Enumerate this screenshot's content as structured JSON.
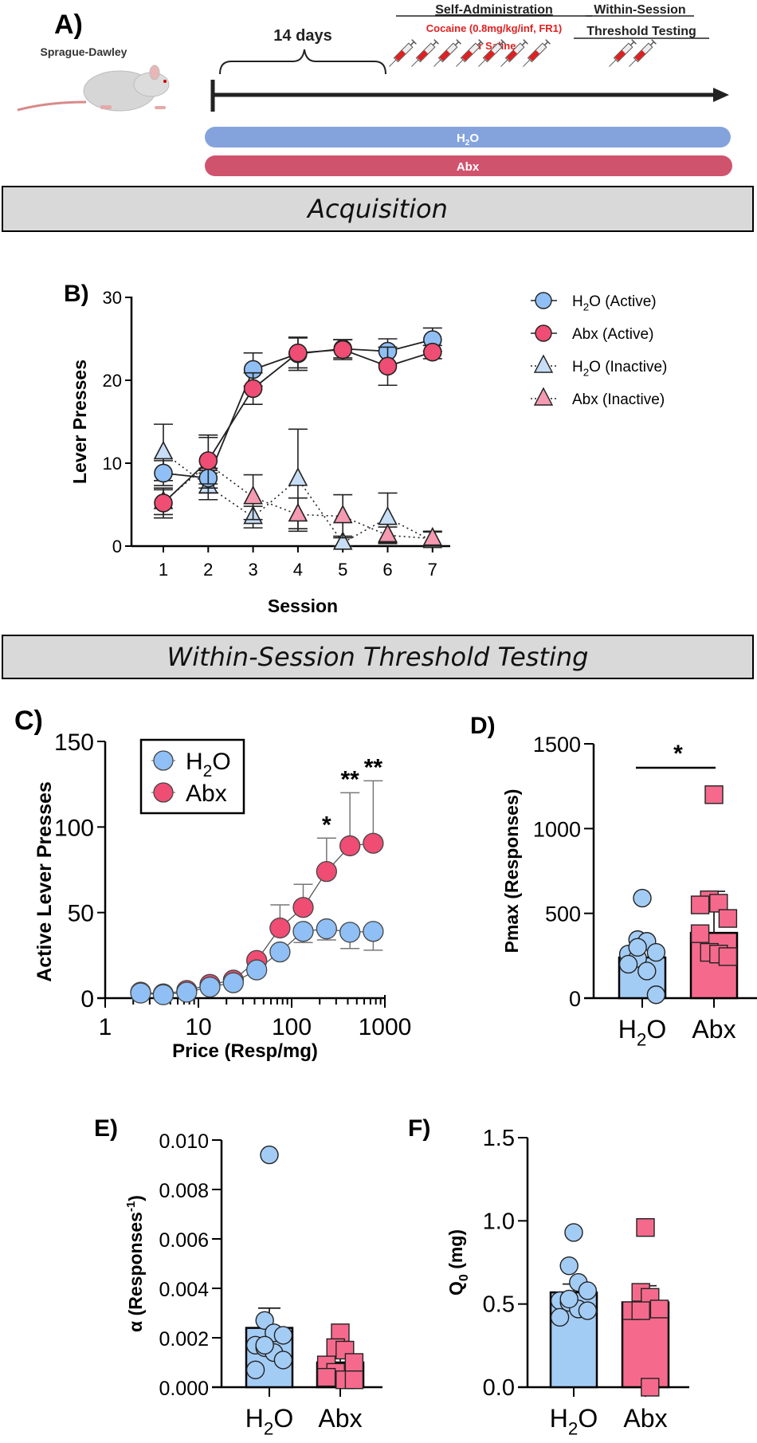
{
  "panel_a": {
    "label": "A)",
    "strain": "Sprague-Dawley",
    "duration": "14 days",
    "self_admin_title": "Self-Administration",
    "self_admin_drug_line1": "Cocaine (0.8mg/kg/inf, FR1)",
    "self_admin_drug_line2": "or Saline",
    "threshold_title_line1": "Within-Session",
    "threshold_title_line2": "Threshold Testing",
    "syringe_count_self_admin": 7,
    "syringe_count_threshold": 2,
    "bars": [
      {
        "label": "H",
        "sub": "2",
        "suffix": "O",
        "color": "#84a3dd"
      },
      {
        "label": "Abx",
        "sub": "",
        "suffix": "",
        "color": "#d0536e"
      }
    ],
    "drug_color": "#e02020"
  },
  "banners": {
    "acquisition": "Acquisition",
    "threshold": "Within-Session Threshold Testing"
  },
  "colors": {
    "h2o": "#8fbff5",
    "abx": "#ef4d73",
    "h2o_inactive": "#c8def7",
    "abx_inactive": "#f59ab1",
    "h2o_bar": "#a3ccf5",
    "abx_bar": "#f56a8c"
  },
  "chart_data": [
    {
      "id": "B",
      "label": "B)",
      "type": "line",
      "xlabel": "Session",
      "ylabel": "Lever Presses",
      "x": [
        1,
        2,
        3,
        4,
        5,
        6,
        7
      ],
      "ylim": [
        0,
        30
      ],
      "yticks": [
        0,
        10,
        20,
        30
      ],
      "series": [
        {
          "name": "H2O (Active)",
          "legend": {
            "main": "H",
            "sub": "2",
            "rest": "O (Active)"
          },
          "marker": "circle",
          "style": "solid",
          "color": "#8fbff5",
          "values": [
            8.8,
            8.2,
            21.3,
            23.2,
            23.8,
            23.5,
            24.9
          ],
          "err": [
            1.5,
            1.2,
            2.0,
            2.0,
            1.1,
            1.5,
            1.4
          ]
        },
        {
          "name": "Abx (Active)",
          "legend": {
            "main": "Abx (Active)",
            "sub": "",
            "rest": ""
          },
          "marker": "circle",
          "style": "solid",
          "color": "#ef4d73",
          "values": [
            5.2,
            10.3,
            19.0,
            23.3,
            23.7,
            21.7,
            23.4
          ],
          "err": [
            1.8,
            2.8,
            1.9,
            1.8,
            1.2,
            2.3,
            0.8
          ]
        },
        {
          "name": "H2O (Inactive)",
          "legend": {
            "main": "H",
            "sub": "2",
            "rest": "O (Inactive)"
          },
          "marker": "triangle",
          "style": "dotted",
          "color": "#c8def7",
          "values": [
            11.3,
            7.2,
            3.5,
            8.1,
            0.4,
            3.4,
            0.6
          ],
          "err": [
            3.4,
            1.6,
            1.3,
            6.0,
            0.8,
            3.0,
            1.1
          ]
        },
        {
          "name": "Abx (Inactive)",
          "legend": {
            "main": "Abx (Inactive)",
            "sub": "",
            "rest": ""
          },
          "marker": "triangle",
          "style": "dotted",
          "color": "#f59ab1",
          "values": [
            5.3,
            9.9,
            5.9,
            3.8,
            3.6,
            1.3,
            0.9
          ],
          "err": [
            1.5,
            3.5,
            2.7,
            2.0,
            2.6,
            1.0,
            0.9
          ]
        }
      ],
      "legend_position": "right"
    },
    {
      "id": "C",
      "label": "C)",
      "type": "line",
      "xlabel": "Price (Resp/mg)",
      "ylabel": "Active Lever Presses",
      "xscale": "log",
      "xlim": [
        1,
        1000
      ],
      "xticks": [
        1,
        10,
        100,
        1000
      ],
      "ylim": [
        0,
        150
      ],
      "yticks": [
        0,
        50,
        100,
        150
      ],
      "x": [
        2.4,
        4.2,
        7.5,
        13.3,
        23.7,
        42.2,
        75,
        133,
        237,
        422,
        750
      ],
      "series": [
        {
          "name": "H2O",
          "legend": {
            "main": "H",
            "sub": "2",
            "rest": "O"
          },
          "color": "#8fbff5",
          "values": [
            3,
            2,
            3.5,
            6.5,
            9,
            16.5,
            27,
            39,
            40.5,
            38.5,
            39
          ],
          "err": [
            0,
            0,
            0,
            0,
            0,
            0,
            0,
            6.5,
            6.5,
            9.5,
            11
          ],
          "err_dir": "down"
        },
        {
          "name": "Abx",
          "legend": {
            "main": "Abx",
            "sub": "",
            "rest": ""
          },
          "color": "#ef4d73",
          "values": [
            3.5,
            2.5,
            4.5,
            8,
            10.5,
            22,
            41,
            53,
            74,
            89,
            90.5
          ],
          "err": [
            0,
            0,
            0,
            0,
            0,
            0,
            13.5,
            13.5,
            19.5,
            31,
            36.5
          ],
          "err_dir": "up"
        }
      ],
      "annotations": [
        {
          "x": 237,
          "text": "*"
        },
        {
          "x": 422,
          "text": "**"
        },
        {
          "x": 750,
          "text": "**"
        }
      ],
      "legend_position": "top-left"
    },
    {
      "id": "D",
      "label": "D)",
      "type": "bar",
      "ylabel": "Pmax (Responses)",
      "categories": [
        {
          "main": "H",
          "sub": "2",
          "rest": "O"
        },
        {
          "main": "Abx",
          "sub": "",
          "rest": ""
        }
      ],
      "ylim": [
        0,
        1500
      ],
      "yticks": [
        0,
        500,
        1000,
        1500
      ],
      "means": [
        240,
        385
      ],
      "sem": [
        55,
        245
      ],
      "points": [
        [
          590,
          345,
          335,
          270,
          260,
          235,
          160,
          20,
          200,
          300
        ],
        [
          1200,
          580,
          560,
          470,
          380,
          270,
          260,
          245,
          550
        ]
      ],
      "significance": "*"
    },
    {
      "id": "E",
      "label": "E)",
      "type": "bar",
      "ylabel": "α (Responses-1)",
      "ylabel_parts": {
        "main": "α (Responses",
        "sup": "-1",
        "rest": ")"
      },
      "categories": [
        {
          "main": "H",
          "sub": "2",
          "rest": "O"
        },
        {
          "main": "Abx",
          "sub": "",
          "rest": ""
        }
      ],
      "ylim": [
        0,
        0.01
      ],
      "yticks": [
        "0.000",
        "0.002",
        "0.004",
        "0.006",
        "0.008",
        "0.010"
      ],
      "means": [
        0.0024,
        0.001
      ],
      "sem": [
        0.0008,
        0.0002
      ],
      "points": [
        [
          0.0094,
          0.0027,
          0.0022,
          0.0021,
          0.0017,
          0.0016,
          0.0014,
          0.0011,
          0.0007,
          0.0017
        ],
        [
          0.0022,
          0.0016,
          0.0015,
          0.001,
          0.0009,
          0.0006,
          0.0003,
          0.0003,
          0.0004
        ]
      ]
    },
    {
      "id": "F",
      "label": "F)",
      "type": "bar",
      "ylabel": "Q0 (mg)",
      "ylabel_parts": {
        "main": "Q",
        "sub": "0",
        "rest": " (mg)"
      },
      "categories": [
        {
          "main": "H",
          "sub": "2",
          "rest": "O"
        },
        {
          "main": "Abx",
          "sub": "",
          "rest": ""
        }
      ],
      "ylim": [
        0,
        1.5
      ],
      "yticks": [
        "0.0",
        "0.5",
        "1.0",
        "1.5"
      ],
      "means": [
        0.57,
        0.51
      ],
      "sem": [
        0.05,
        0.1
      ],
      "points": [
        [
          0.93,
          0.73,
          0.63,
          0.58,
          0.52,
          0.51,
          0.47,
          0.46,
          0.42,
          0.53
        ],
        [
          0.96,
          0.57,
          0.54,
          0.47,
          0.46,
          0.46,
          0.0
        ]
      ]
    }
  ]
}
